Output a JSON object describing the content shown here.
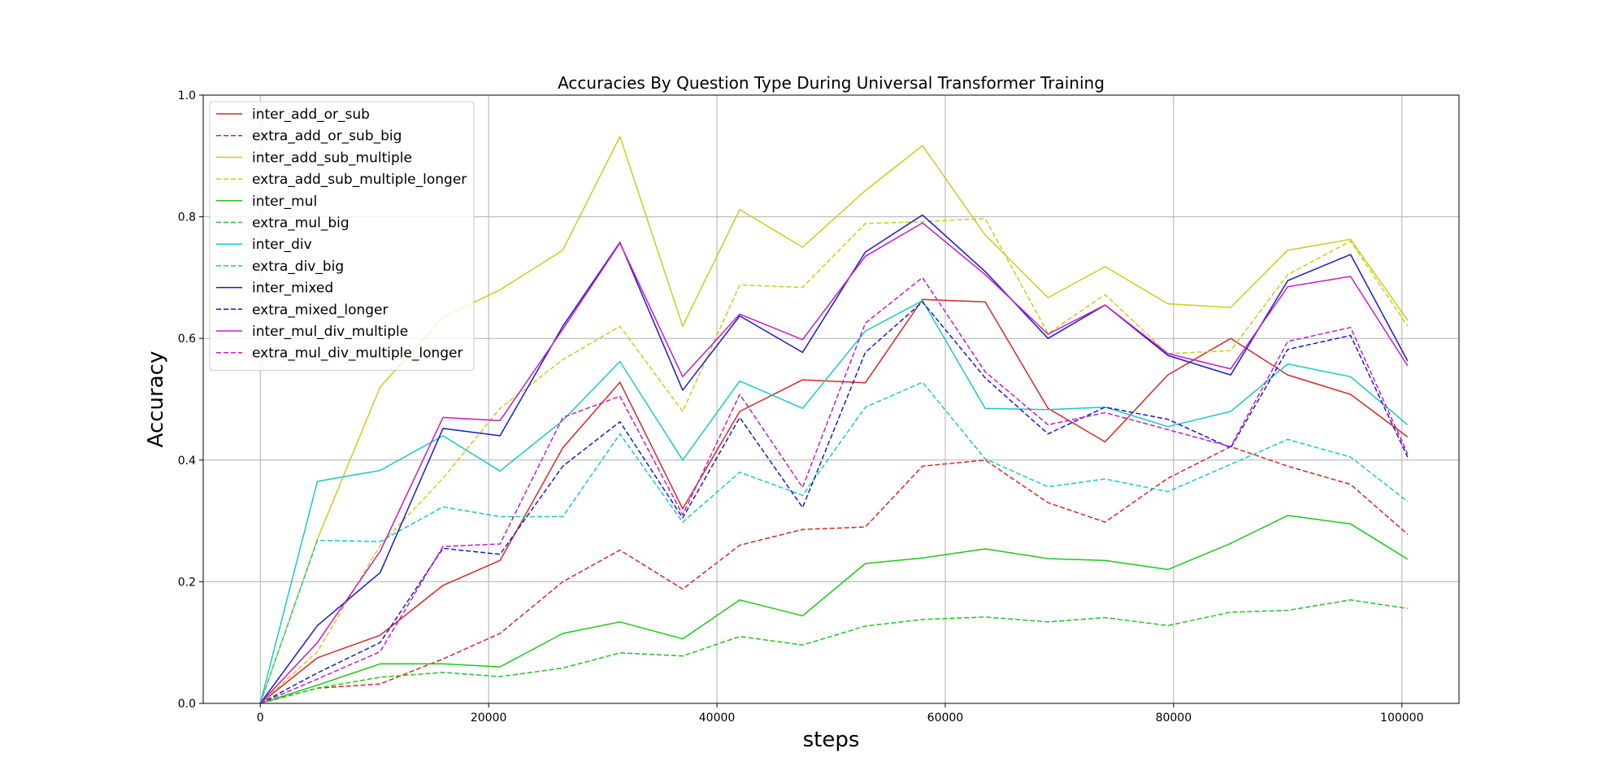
{
  "chart_data": {
    "type": "line",
    "title": "Accuracies By Question Type During Universal Transformer Training",
    "xlabel": "steps",
    "ylabel": "Accuracy",
    "xlim": [
      -5000,
      105000
    ],
    "ylim": [
      0.0,
      1.0
    ],
    "xticks": [
      0,
      20000,
      40000,
      60000,
      80000,
      100000
    ],
    "xtick_labels": [
      "0",
      "20000",
      "40000",
      "60000",
      "80000",
      "100000"
    ],
    "yticks": [
      0.0,
      0.2,
      0.4,
      0.6,
      0.8,
      1.0
    ],
    "ytick_labels": [
      "0.0",
      "0.2",
      "0.4",
      "0.6",
      "0.8",
      "1.0"
    ],
    "grid": true,
    "legend_position": "top-left",
    "x": [
      0,
      5000,
      10500,
      16000,
      21000,
      26500,
      31500,
      37000,
      42000,
      47500,
      53000,
      58000,
      63500,
      69000,
      74000,
      79500,
      85000,
      90000,
      95500,
      100500
    ],
    "series": [
      {
        "name": "inter_add_or_sub",
        "color": "#d62728",
        "dash": false,
        "values": [
          0.0,
          0.075,
          0.112,
          0.194,
          0.235,
          0.42,
          0.528,
          0.32,
          0.48,
          0.532,
          0.527,
          0.664,
          0.66,
          0.485,
          0.43,
          0.54,
          0.6,
          0.54,
          0.508,
          0.438
        ]
      },
      {
        "name": "extra_add_or_sub_big",
        "color": "#d62728",
        "dash": true,
        "values": [
          0.0,
          0.025,
          0.032,
          0.073,
          0.115,
          0.2,
          0.252,
          0.188,
          0.26,
          0.286,
          0.29,
          0.39,
          0.4,
          0.33,
          0.298,
          0.37,
          0.422,
          0.39,
          0.36,
          0.278
        ]
      },
      {
        "name": "inter_add_sub_multiple",
        "color": "#cccc1a",
        "dash": false,
        "values": [
          0.0,
          0.27,
          0.52,
          0.635,
          0.68,
          0.745,
          0.932,
          0.62,
          0.812,
          0.75,
          0.843,
          0.917,
          0.77,
          0.667,
          0.718,
          0.657,
          0.651,
          0.745,
          0.763,
          0.63
        ]
      },
      {
        "name": "extra_add_sub_multiple_longer",
        "color": "#cccc1a",
        "dash": true,
        "values": [
          0.0,
          0.085,
          0.26,
          0.37,
          0.485,
          0.565,
          0.62,
          0.48,
          0.688,
          0.684,
          0.789,
          0.792,
          0.797,
          0.608,
          0.672,
          0.575,
          0.58,
          0.705,
          0.76,
          0.62
        ]
      },
      {
        "name": "inter_mul",
        "color": "#1ac81a",
        "dash": false,
        "values": [
          0.0,
          0.03,
          0.065,
          0.065,
          0.06,
          0.115,
          0.134,
          0.106,
          0.17,
          0.144,
          0.23,
          0.239,
          0.254,
          0.238,
          0.235,
          0.22,
          0.263,
          0.309,
          0.295,
          0.237
        ]
      },
      {
        "name": "extra_mul_big",
        "color": "#1ac81a",
        "dash": true,
        "values": [
          0.0,
          0.025,
          0.043,
          0.051,
          0.044,
          0.058,
          0.083,
          0.078,
          0.11,
          0.096,
          0.127,
          0.138,
          0.142,
          0.134,
          0.141,
          0.128,
          0.15,
          0.153,
          0.17,
          0.156
        ]
      },
      {
        "name": "inter_div",
        "color": "#1ac8c8",
        "dash": false,
        "values": [
          0.0,
          0.365,
          0.383,
          0.44,
          0.382,
          0.465,
          0.562,
          0.4,
          0.53,
          0.485,
          0.612,
          0.662,
          0.485,
          0.483,
          0.487,
          0.455,
          0.48,
          0.558,
          0.537,
          0.458
        ]
      },
      {
        "name": "extra_div_big",
        "color": "#1ac8c8",
        "dash": true,
        "values": [
          0.0,
          0.268,
          0.266,
          0.323,
          0.307,
          0.307,
          0.443,
          0.298,
          0.38,
          0.342,
          0.487,
          0.528,
          0.402,
          0.356,
          0.369,
          0.348,
          0.393,
          0.434,
          0.405,
          0.332
        ]
      },
      {
        "name": "inter_mixed",
        "color": "#1a1ac8",
        "dash": false,
        "values": [
          0.0,
          0.128,
          0.215,
          0.452,
          0.44,
          0.62,
          0.758,
          0.515,
          0.637,
          0.577,
          0.742,
          0.803,
          0.71,
          0.6,
          0.655,
          0.572,
          0.54,
          0.695,
          0.738,
          0.563
        ]
      },
      {
        "name": "extra_mixed_longer",
        "color": "#1a1ac8",
        "dash": true,
        "values": [
          0.0,
          0.05,
          0.1,
          0.255,
          0.245,
          0.39,
          0.463,
          0.305,
          0.47,
          0.322,
          0.577,
          0.66,
          0.535,
          0.443,
          0.487,
          0.467,
          0.42,
          0.582,
          0.605,
          0.405
        ]
      },
      {
        "name": "inter_mul_div_multiple",
        "color": "#c81ac8",
        "dash": false,
        "values": [
          0.0,
          0.1,
          0.25,
          0.47,
          0.465,
          0.615,
          0.757,
          0.537,
          0.64,
          0.598,
          0.735,
          0.79,
          0.705,
          0.607,
          0.655,
          0.575,
          0.55,
          0.685,
          0.702,
          0.555
        ]
      },
      {
        "name": "extra_mul_div_multiple_longer",
        "color": "#c81ac8",
        "dash": true,
        "values": [
          0.0,
          0.04,
          0.085,
          0.258,
          0.262,
          0.47,
          0.505,
          0.31,
          0.508,
          0.355,
          0.625,
          0.7,
          0.545,
          0.458,
          0.478,
          0.45,
          0.422,
          0.595,
          0.618,
          0.41
        ]
      }
    ]
  }
}
